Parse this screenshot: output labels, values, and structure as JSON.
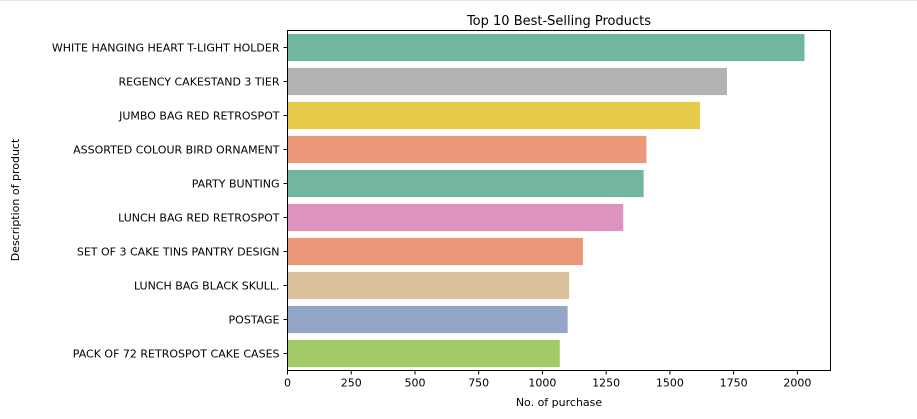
{
  "chart_data": {
    "type": "bar",
    "orientation": "horizontal",
    "title": "Top 10 Best-Selling Products",
    "xlabel": "No. of purchase",
    "ylabel": "Description of product",
    "xlim": [
      0,
      2130
    ],
    "xticks": [
      0,
      250,
      500,
      750,
      1000,
      1250,
      1500,
      1750,
      2000
    ],
    "grid": false,
    "legend": "none",
    "categories": [
      "WHITE HANGING HEART T-LIGHT HOLDER",
      "REGENCY CAKESTAND 3 TIER",
      "JUMBO BAG RED RETROSPOT",
      "ASSORTED COLOUR BIRD ORNAMENT",
      "PARTY BUNTING",
      "LUNCH BAG RED RETROSPOT",
      "SET OF 3 CAKE TINS PANTRY DESIGN ",
      "LUNCH BAG  BLACK SKULL.",
      "POSTAGE",
      "PACK OF 72 RETROSPOT CAKE CASES"
    ],
    "values": [
      2028,
      1724,
      1618,
      1408,
      1397,
      1317,
      1159,
      1105,
      1099,
      1068
    ],
    "colors": [
      "#72b6a1",
      "#b3b3b3",
      "#e5cb49",
      "#ea9877",
      "#72b6a1",
      "#dd94c1",
      "#ea9877",
      "#dac29c",
      "#94a6c8",
      "#a0cb67"
    ]
  }
}
